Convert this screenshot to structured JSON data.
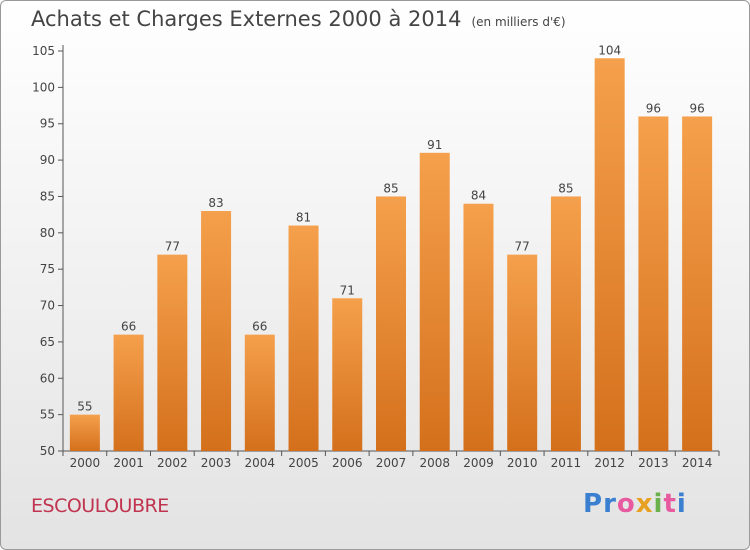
{
  "header": {
    "title": "Achats et Charges Externes 2000 à 2014",
    "unit": "(en milliers d'€)"
  },
  "footer": {
    "commune": "ESCOULOUBRE",
    "logo_letters": [
      "P",
      "r",
      "o",
      "x",
      "i",
      "t",
      "i"
    ],
    "logo_colors": [
      "#3a7fd0",
      "#3a7fd0",
      "#e85aa0",
      "#e8a020",
      "#6ab04c",
      "#e85aa0",
      "#3a7fd0"
    ]
  },
  "colors": {
    "bar_top": "#f5a04c",
    "bar_bottom": "#d4701c",
    "axis_text": "#444444",
    "grid": "#cccccc"
  },
  "chart_data": {
    "type": "bar",
    "title": "Achats et Charges Externes 2000 à 2014",
    "categories": [
      "2000",
      "2001",
      "2002",
      "2003",
      "2004",
      "2005",
      "2006",
      "2007",
      "2008",
      "2009",
      "2010",
      "2011",
      "2012",
      "2013",
      "2014"
    ],
    "values": [
      55,
      66,
      77,
      83,
      66,
      81,
      71,
      85,
      91,
      84,
      77,
      85,
      104,
      96,
      96
    ],
    "ylim": [
      50,
      105
    ],
    "yticks": [
      50,
      55,
      60,
      65,
      70,
      75,
      80,
      85,
      90,
      95,
      100,
      105
    ],
    "grid": false,
    "data_labels": true
  }
}
